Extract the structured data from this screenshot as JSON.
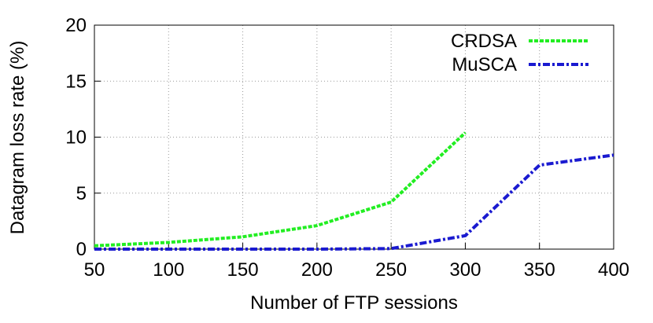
{
  "chart_data": {
    "type": "line",
    "x_label": "Number of FTP sessions",
    "y_label": "Datagram loss rate (%)",
    "x": [
      50,
      100,
      150,
      200,
      250,
      300,
      350,
      400
    ],
    "series": [
      {
        "name": "CRDSA",
        "color": "#22ee22",
        "values": [
          0.3,
          0.6,
          1.1,
          2.1,
          4.2,
          10.4,
          null,
          null
        ]
      },
      {
        "name": "MuSCA",
        "color": "#1a1ad0",
        "values": [
          0,
          0,
          0,
          0,
          0.05,
          1.2,
          7.5,
          8.4
        ]
      }
    ],
    "xlim": [
      50,
      400
    ],
    "xticks": [
      50,
      100,
      150,
      200,
      250,
      300,
      350,
      400
    ],
    "ylim": [
      0,
      20
    ],
    "yticks": [
      0,
      5,
      10,
      15,
      20
    ],
    "grid": true,
    "legend": "top-right"
  }
}
